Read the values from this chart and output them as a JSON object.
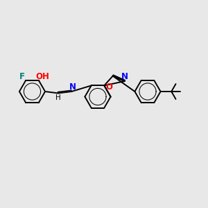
{
  "bg_color": "#e8e8e8",
  "bond_color": "#000000",
  "bond_width": 1.4,
  "atom_colors": {
    "F": "#008080",
    "O": "#ff0000",
    "N": "#0000ff",
    "C": "#000000"
  },
  "font_size": 8.5,
  "fig_width": 3.0,
  "fig_height": 3.0
}
